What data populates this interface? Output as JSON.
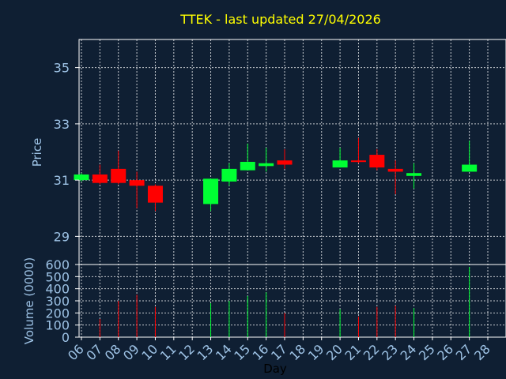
{
  "title": "TTEK - last updated 27/04/2026",
  "colors": {
    "background": "#0f1f33",
    "plot_background": "#0f1f33",
    "title": "#ffff00",
    "axis_text": "#9ec3e6",
    "up": "#00ff33",
    "down": "#ff0000",
    "grid": "#ffffff"
  },
  "chart_data": [
    {
      "type": "candlestick",
      "ylabel": "Price",
      "ylim": [
        28,
        36
      ],
      "yticks": [
        29,
        31,
        33,
        35
      ],
      "grid": true,
      "candles": [
        {
          "day": 6,
          "open": 31.0,
          "close": 31.2,
          "high": 31.25,
          "low": 30.95
        },
        {
          "day": 7,
          "open": 31.2,
          "close": 30.9,
          "high": 31.55,
          "low": 30.85
        },
        {
          "day": 8,
          "open": 31.4,
          "close": 30.9,
          "high": 32.05,
          "low": 30.85
        },
        {
          "day": 9,
          "open": 31.0,
          "close": 30.8,
          "high": 31.3,
          "low": 30.0
        },
        {
          "day": 10,
          "open": 30.8,
          "close": 30.2,
          "high": 30.85,
          "low": 29.9
        },
        {
          "day": 13,
          "open": 30.15,
          "close": 31.05,
          "high": 31.05,
          "low": 29.9
        },
        {
          "day": 14,
          "open": 30.95,
          "close": 31.4,
          "high": 31.6,
          "low": 30.8
        },
        {
          "day": 15,
          "open": 31.35,
          "close": 31.65,
          "high": 32.3,
          "low": 31.35
        },
        {
          "day": 16,
          "open": 31.5,
          "close": 31.6,
          "high": 32.15,
          "low": 31.3
        },
        {
          "day": 17,
          "open": 31.7,
          "close": 31.55,
          "high": 32.1,
          "low": 31.4
        },
        {
          "day": 20,
          "open": 31.45,
          "close": 31.7,
          "high": 32.15,
          "low": 31.45
        },
        {
          "day": 21,
          "open": 31.7,
          "close": 31.65,
          "high": 32.5,
          "low": 31.6
        },
        {
          "day": 22,
          "open": 31.9,
          "close": 31.45,
          "high": 32.1,
          "low": 31.35
        },
        {
          "day": 23,
          "open": 31.4,
          "close": 31.3,
          "high": 31.7,
          "low": 30.5
        },
        {
          "day": 24,
          "open": 31.15,
          "close": 31.25,
          "high": 31.6,
          "low": 30.7
        },
        {
          "day": 27,
          "open": 31.3,
          "close": 31.55,
          "high": 32.4,
          "low": 31.3
        }
      ]
    },
    {
      "type": "bar",
      "ylabel": "Volume (0000)",
      "xlabel": "Day",
      "ylim": [
        0,
        600
      ],
      "yticks": [
        0,
        100,
        200,
        300,
        400,
        500,
        600
      ],
      "grid": true,
      "xticks": [
        "06",
        "07",
        "08",
        "09",
        "10",
        "11",
        "12",
        "13",
        "14",
        "15",
        "16",
        "17",
        "18",
        "19",
        "20",
        "21",
        "22",
        "23",
        "24",
        "25",
        "26",
        "27",
        "28"
      ],
      "volumes": [
        {
          "day": 7,
          "value": 150,
          "direction": "down"
        },
        {
          "day": 8,
          "value": 300,
          "direction": "down"
        },
        {
          "day": 9,
          "value": 350,
          "direction": "down"
        },
        {
          "day": 10,
          "value": 250,
          "direction": "down"
        },
        {
          "day": 13,
          "value": 280,
          "direction": "up"
        },
        {
          "day": 14,
          "value": 300,
          "direction": "up"
        },
        {
          "day": 15,
          "value": 340,
          "direction": "up"
        },
        {
          "day": 16,
          "value": 370,
          "direction": "up"
        },
        {
          "day": 17,
          "value": 200,
          "direction": "down"
        },
        {
          "day": 20,
          "value": 230,
          "direction": "up"
        },
        {
          "day": 21,
          "value": 170,
          "direction": "down"
        },
        {
          "day": 22,
          "value": 250,
          "direction": "down"
        },
        {
          "day": 23,
          "value": 260,
          "direction": "down"
        },
        {
          "day": 24,
          "value": 240,
          "direction": "up"
        },
        {
          "day": 27,
          "value": 580,
          "direction": "up"
        }
      ]
    }
  ]
}
